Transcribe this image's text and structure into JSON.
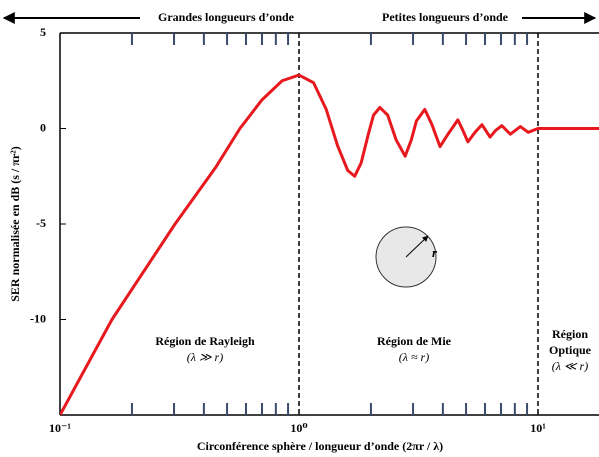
{
  "chart_data": {
    "type": "line",
    "y_label": "SER normalisée en dB  (s / πr²)",
    "x_label": "Circonférence sphère / longueur d’onde   (2πr / λ)",
    "left_band_label": "Grandes longueurs d’onde",
    "right_band_label": "Petites longueurs d’onde",
    "regions": [
      {
        "name": "Région de Rayleigh",
        "condition": "(λ ≫ r)"
      },
      {
        "name": "Région de Mie",
        "condition": "(λ ≈ r)"
      },
      {
        "name": [
          "Région",
          "Optique"
        ],
        "condition": "(λ ≪ r)"
      }
    ],
    "sphere_label": "r",
    "boundaries": [
      1,
      10
    ],
    "x_log": true,
    "xlim": [
      0.1,
      18
    ],
    "ylim": [
      -15,
      5
    ],
    "xticks": [
      {
        "value": 0.1,
        "label": "10⁻¹"
      },
      {
        "value": 1,
        "label": "10⁰"
      },
      {
        "value": 10,
        "label": "10¹"
      }
    ],
    "minor_xticks": [
      0.2,
      0.3,
      0.4,
      0.5,
      0.6,
      0.7,
      0.8,
      0.9,
      2,
      3,
      4,
      5,
      6,
      7,
      8,
      9
    ],
    "yticks": [
      5,
      0,
      -5,
      -10
    ],
    "series": [
      {
        "color": "#e8191e",
        "x": [
          0.1,
          0.165,
          0.303,
          0.45,
          0.566,
          0.7,
          0.85,
          1.0,
          1.15,
          1.3,
          1.45,
          1.6,
          1.71,
          1.82,
          1.95,
          2.05,
          2.18,
          2.35,
          2.55,
          2.78,
          2.95,
          3.1,
          3.36,
          3.6,
          3.89,
          4.2,
          4.62,
          4.85,
          5.09,
          5.45,
          5.83,
          6.3,
          6.65,
          7.06,
          7.66,
          8.44,
          9.1,
          10,
          18
        ],
        "values": [
          -15,
          -10,
          -5,
          -2,
          0,
          1.5,
          2.5,
          2.8,
          2.4,
          1.0,
          -0.9,
          -2.2,
          -2.5,
          -1.8,
          -0.3,
          0.7,
          1.1,
          0.7,
          -0.6,
          -1.45,
          -0.6,
          0.4,
          1.0,
          0.2,
          -0.95,
          -0.3,
          0.45,
          -0.1,
          -0.7,
          -0.2,
          0.2,
          -0.45,
          -0.1,
          0.15,
          -0.3,
          0.1,
          -0.2,
          0,
          0
        ]
      }
    ]
  }
}
